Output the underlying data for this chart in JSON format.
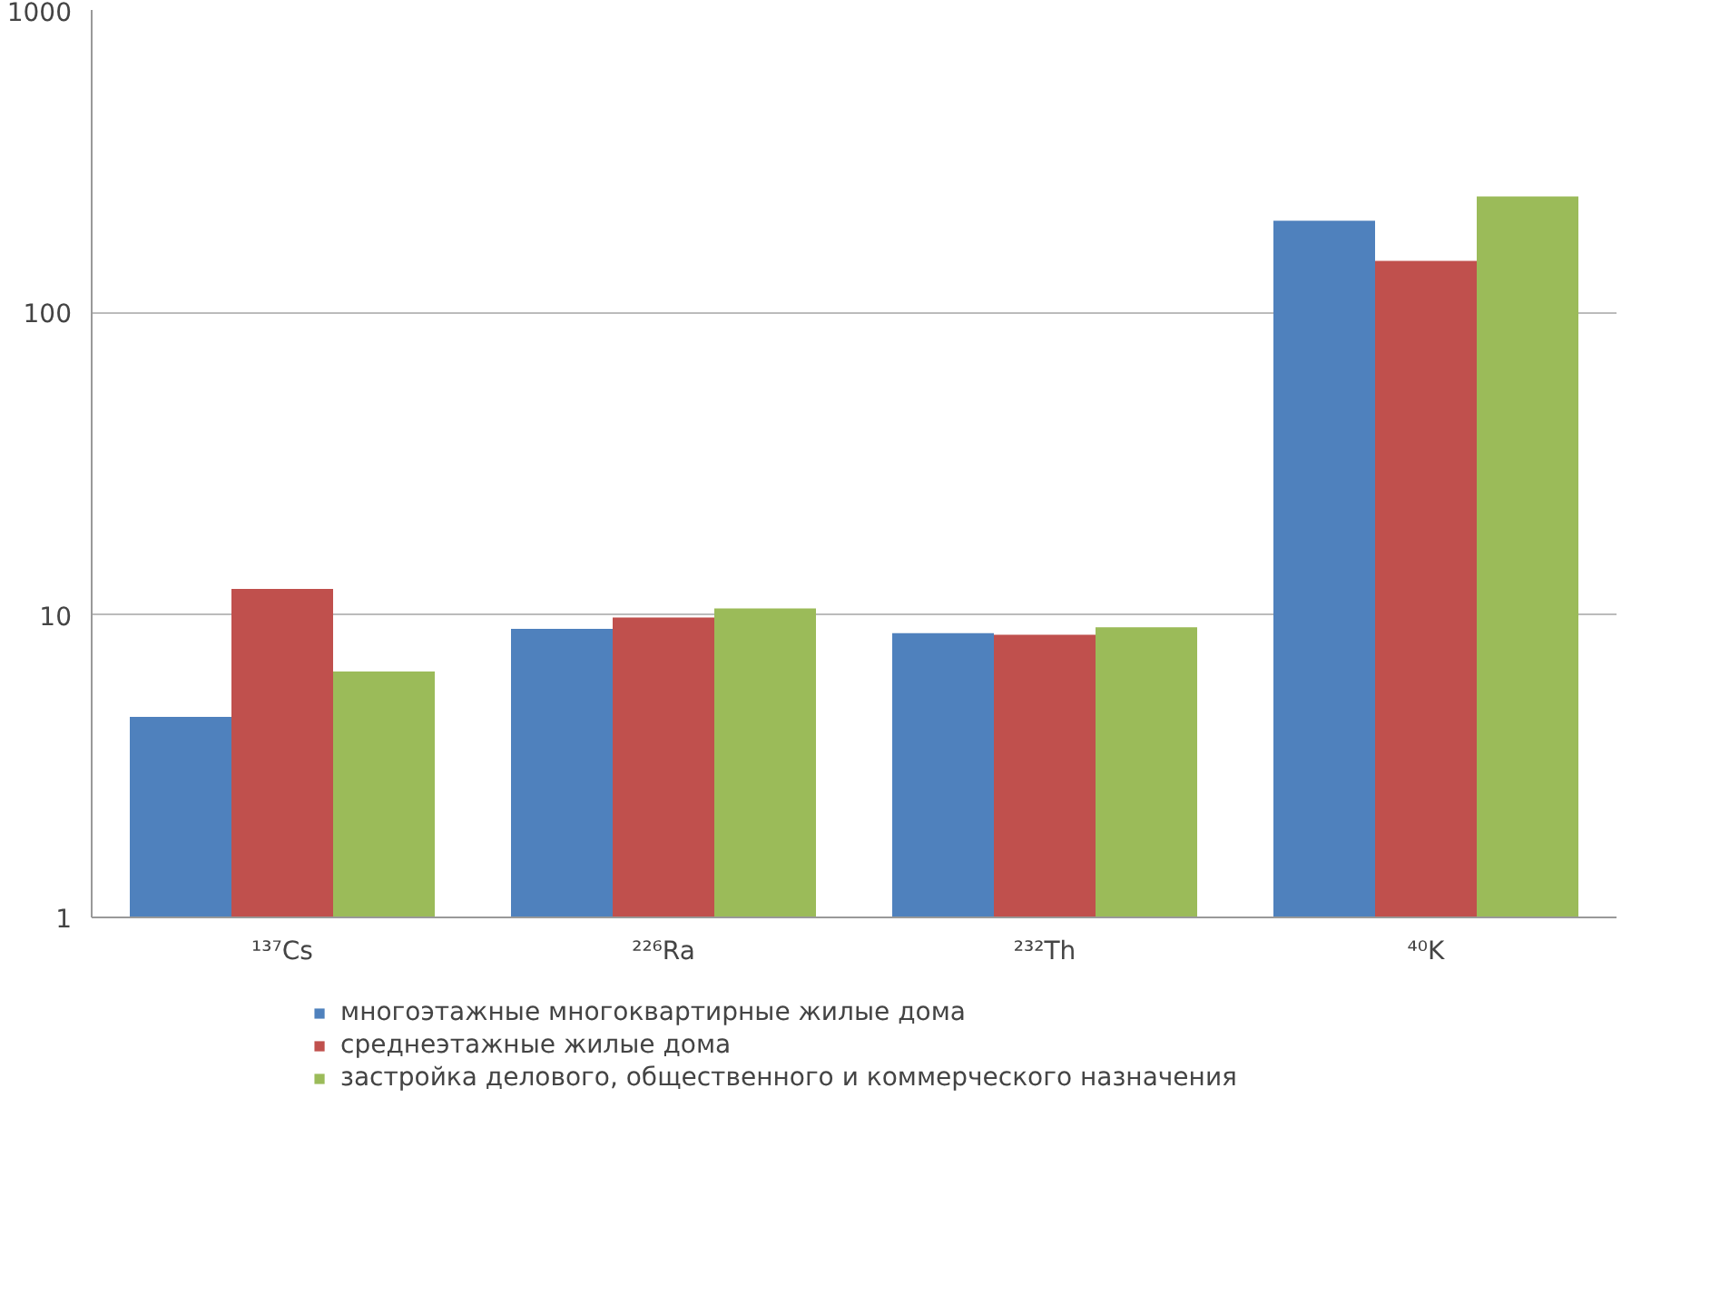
{
  "chart_data": {
    "type": "bar",
    "categories": [
      "¹³⁷Cs",
      "²²⁶Ra",
      "²³²Th",
      "⁴⁰K"
    ],
    "series": [
      {
        "name": "многоэтажные многоквартирные жилые дома",
        "color": "#4f81bd",
        "values": [
          4.6,
          9.0,
          8.7,
          201
        ]
      },
      {
        "name": "среднеэтажные жилые дома",
        "color": "#c0504d",
        "values": [
          12.2,
          9.8,
          8.6,
          148
        ]
      },
      {
        "name": "застройка делового, общественного и коммерческого назначения",
        "color": "#9bbb59",
        "values": [
          6.5,
          10.5,
          9.1,
          242
        ]
      }
    ],
    "log": true,
    "ylim": [
      1,
      1000
    ],
    "yticks": [
      1,
      10,
      100,
      1000
    ],
    "grid": "y",
    "legend": "bottom"
  }
}
